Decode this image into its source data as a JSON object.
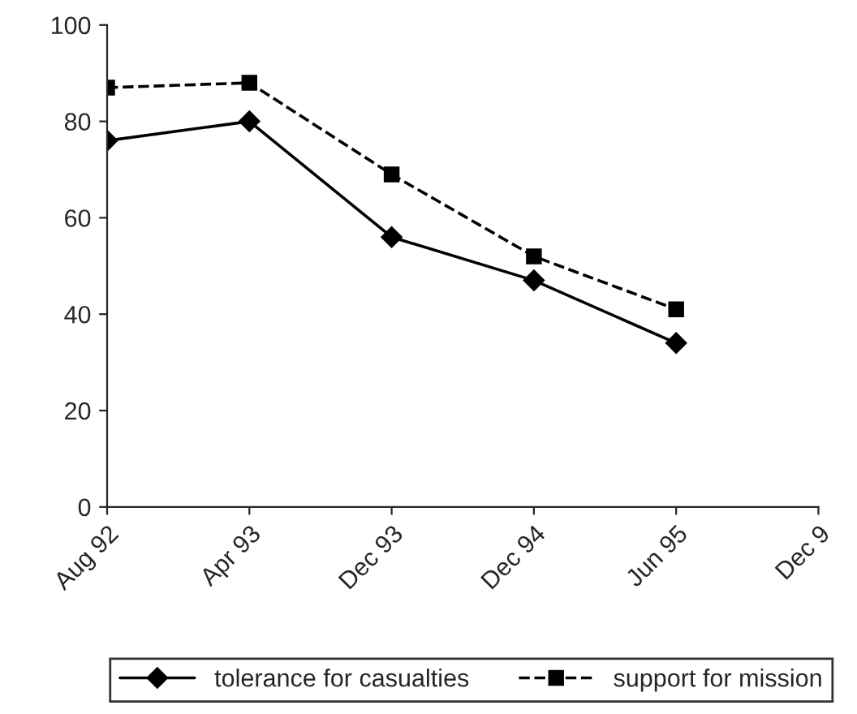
{
  "chart_data": {
    "type": "line",
    "categories": [
      "Aug 92",
      "Apr 93",
      "Dec 93",
      "Dec 94",
      "Jun 95",
      "Dec 9"
    ],
    "series": [
      {
        "name": "tolerance for casualties",
        "color": "#000000",
        "values": [
          76,
          80,
          56,
          47,
          34,
          null
        ],
        "marker": "diamond",
        "line_style": "solid"
      },
      {
        "name": "support for mission",
        "color": "#000000",
        "values": [
          87,
          88,
          69,
          52,
          41,
          null
        ],
        "marker": "square",
        "line_style": "dashed"
      }
    ],
    "ylim": [
      0,
      100
    ],
    "yticks": [
      0,
      20,
      40,
      60,
      80,
      100
    ],
    "grid": false,
    "legend": "bottom"
  }
}
